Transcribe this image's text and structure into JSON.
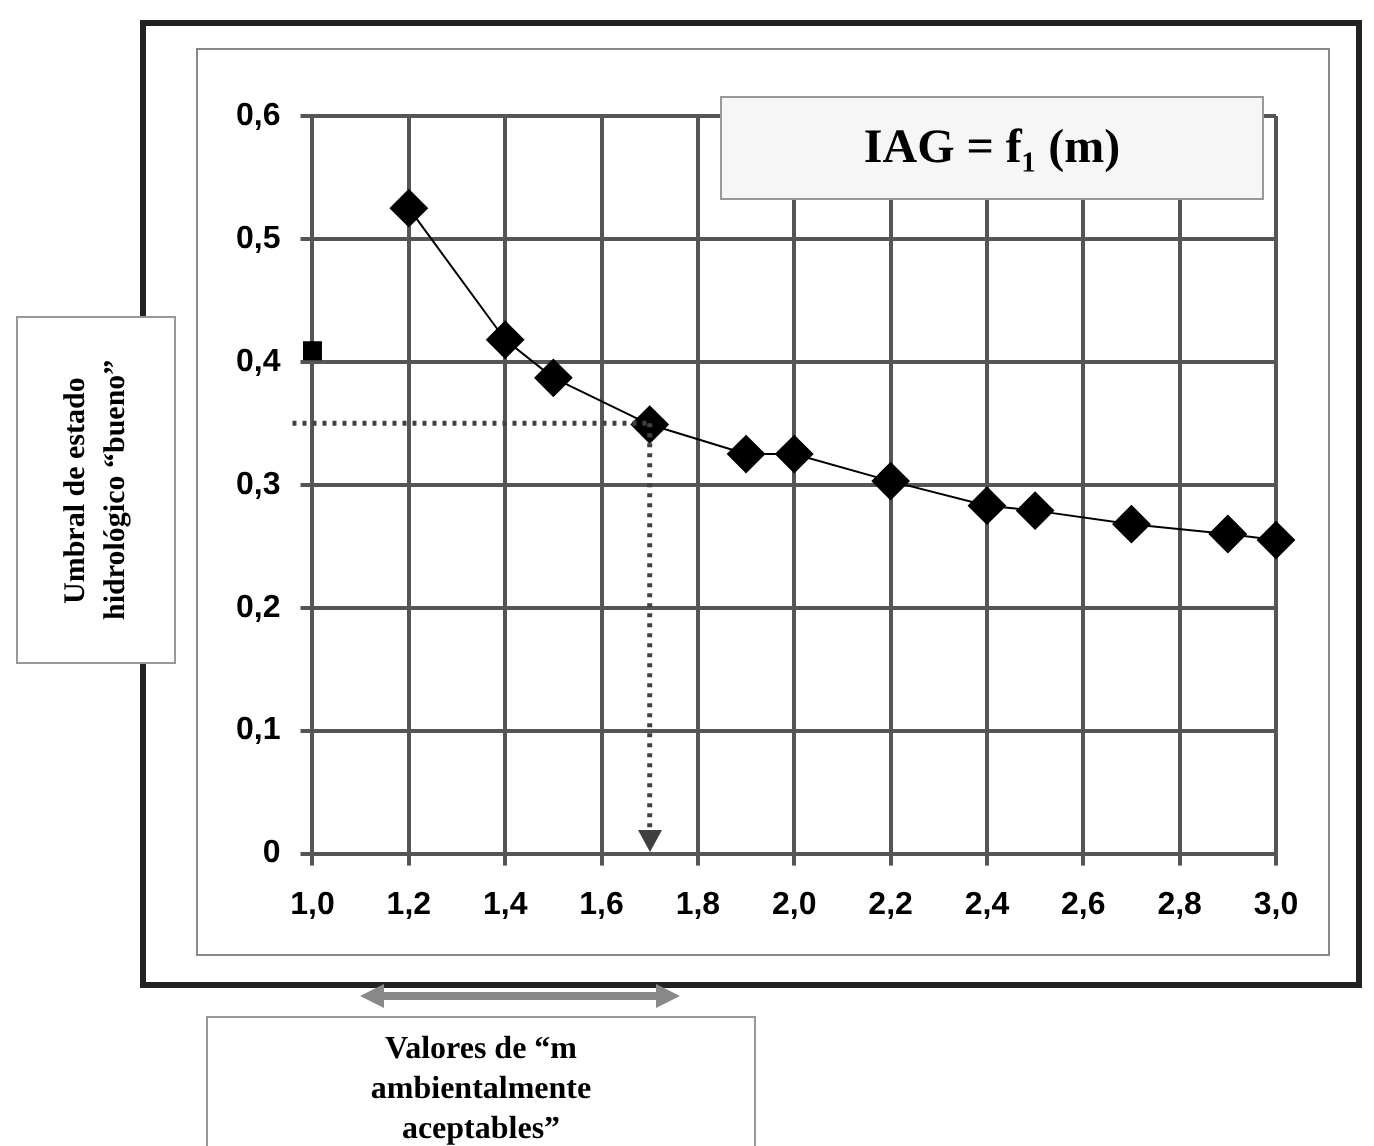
{
  "chart_data": {
    "type": "line",
    "title": "IAG = f₁ (m)",
    "series": [
      {
        "type": "line",
        "color": "#000000",
        "marker": "diamond",
        "x": [
          1.2,
          1.4,
          1.5,
          1.7,
          1.9,
          2.0,
          2.2,
          2.4,
          2.5,
          2.7,
          2.9,
          3.0
        ],
        "values": [
          0.525,
          0.418,
          0.387,
          0.349,
          0.325,
          0.325,
          0.303,
          0.283,
          0.279,
          0.268,
          0.26,
          0.255
        ]
      },
      {
        "type": "scatter",
        "color": "#000000",
        "marker": "square",
        "x": [
          1.0
        ],
        "values": [
          0.409
        ]
      }
    ],
    "xlim": [
      1.0,
      3.0
    ],
    "ylim": [
      0,
      0.6
    ],
    "xticks": [
      {
        "value": 1.0,
        "label": "1,0"
      },
      {
        "value": 1.2,
        "label": "1,2"
      },
      {
        "value": 1.4,
        "label": "1,4"
      },
      {
        "value": 1.6,
        "label": "1,6"
      },
      {
        "value": 1.8,
        "label": "1,8"
      },
      {
        "value": 2.0,
        "label": "2,0"
      },
      {
        "value": 2.2,
        "label": "2,2"
      },
      {
        "value": 2.4,
        "label": "2,4"
      },
      {
        "value": 2.6,
        "label": "2,6"
      },
      {
        "value": 2.8,
        "label": "2,8"
      },
      {
        "value": 3.0,
        "label": "3,0"
      }
    ],
    "yticks": [
      0,
      {
        "value": 0.1,
        "label": "0,1"
      },
      {
        "value": 0.2,
        "label": "0,2"
      },
      {
        "value": 0.3,
        "label": "0,3"
      },
      {
        "value": 0.4,
        "label": "0,4"
      },
      {
        "value": 0.5,
        "label": "0,5"
      },
      {
        "value": 0.6,
        "label": "0,6"
      }
    ],
    "ref_lines": [
      {
        "axis": "y",
        "value": 0.35,
        "line_style": "dotted",
        "color": "#404040"
      },
      {
        "axis": "x",
        "value": 1.7,
        "line_style": "dotted",
        "color": "#404040"
      }
    ],
    "annotations": [
      "Umbral de estado hidrológico “bueno”",
      "Valores de “m ambientalmente aceptables”"
    ],
    "grid": true,
    "legend": false
  }
}
